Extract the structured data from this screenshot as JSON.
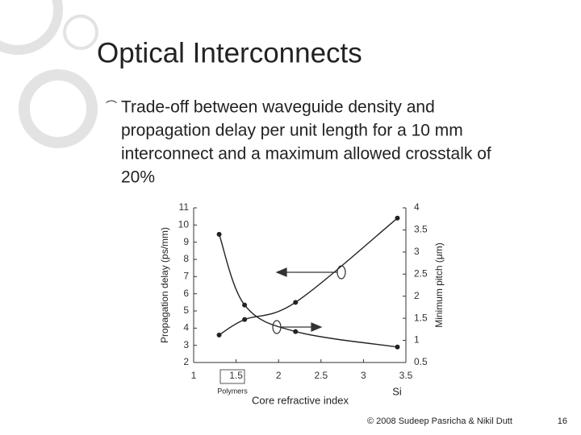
{
  "slide_title": "Optical Interconnects",
  "bullet": [
    "Trade-off between waveguide density and",
    "propagation delay per unit length for a 10 mm",
    "interconnect and a maximum allowed crosstalk of",
    "20%"
  ],
  "footer": "© 2008 Sudeep Pasricha & Nikil Dutt",
  "page_number": "16",
  "chart_data": {
    "type": "line",
    "x_label": "Core refractive index",
    "y_label": "Propagation delay (ps/mm)",
    "y2_label": "Minimum pitch (μm)",
    "annotations": [
      "Polymers",
      "Si"
    ],
    "x": [
      1.3,
      1.6,
      2.2,
      3.4
    ],
    "series": [
      {
        "name": "Propagation delay",
        "color": "#222222",
        "values": [
          3.6,
          4.5,
          5.5,
          10.4
        ]
      },
      {
        "name": "Minimum pitch",
        "color": "#222222",
        "axis": "y2",
        "values": [
          3.4,
          1.8,
          1.2,
          0.85
        ]
      }
    ],
    "xlim": [
      1,
      3.5
    ],
    "xticks": [
      1,
      1.5,
      2,
      2.5,
      3,
      3.5
    ],
    "ylim": [
      2,
      11
    ],
    "yticks": [
      2,
      3,
      4,
      5,
      6,
      7,
      8,
      9,
      10,
      11
    ],
    "y2lim": [
      0.5,
      4
    ],
    "y2ticks": [
      0.5,
      1,
      1.5,
      2,
      2.5,
      3,
      3.5,
      4
    ]
  }
}
